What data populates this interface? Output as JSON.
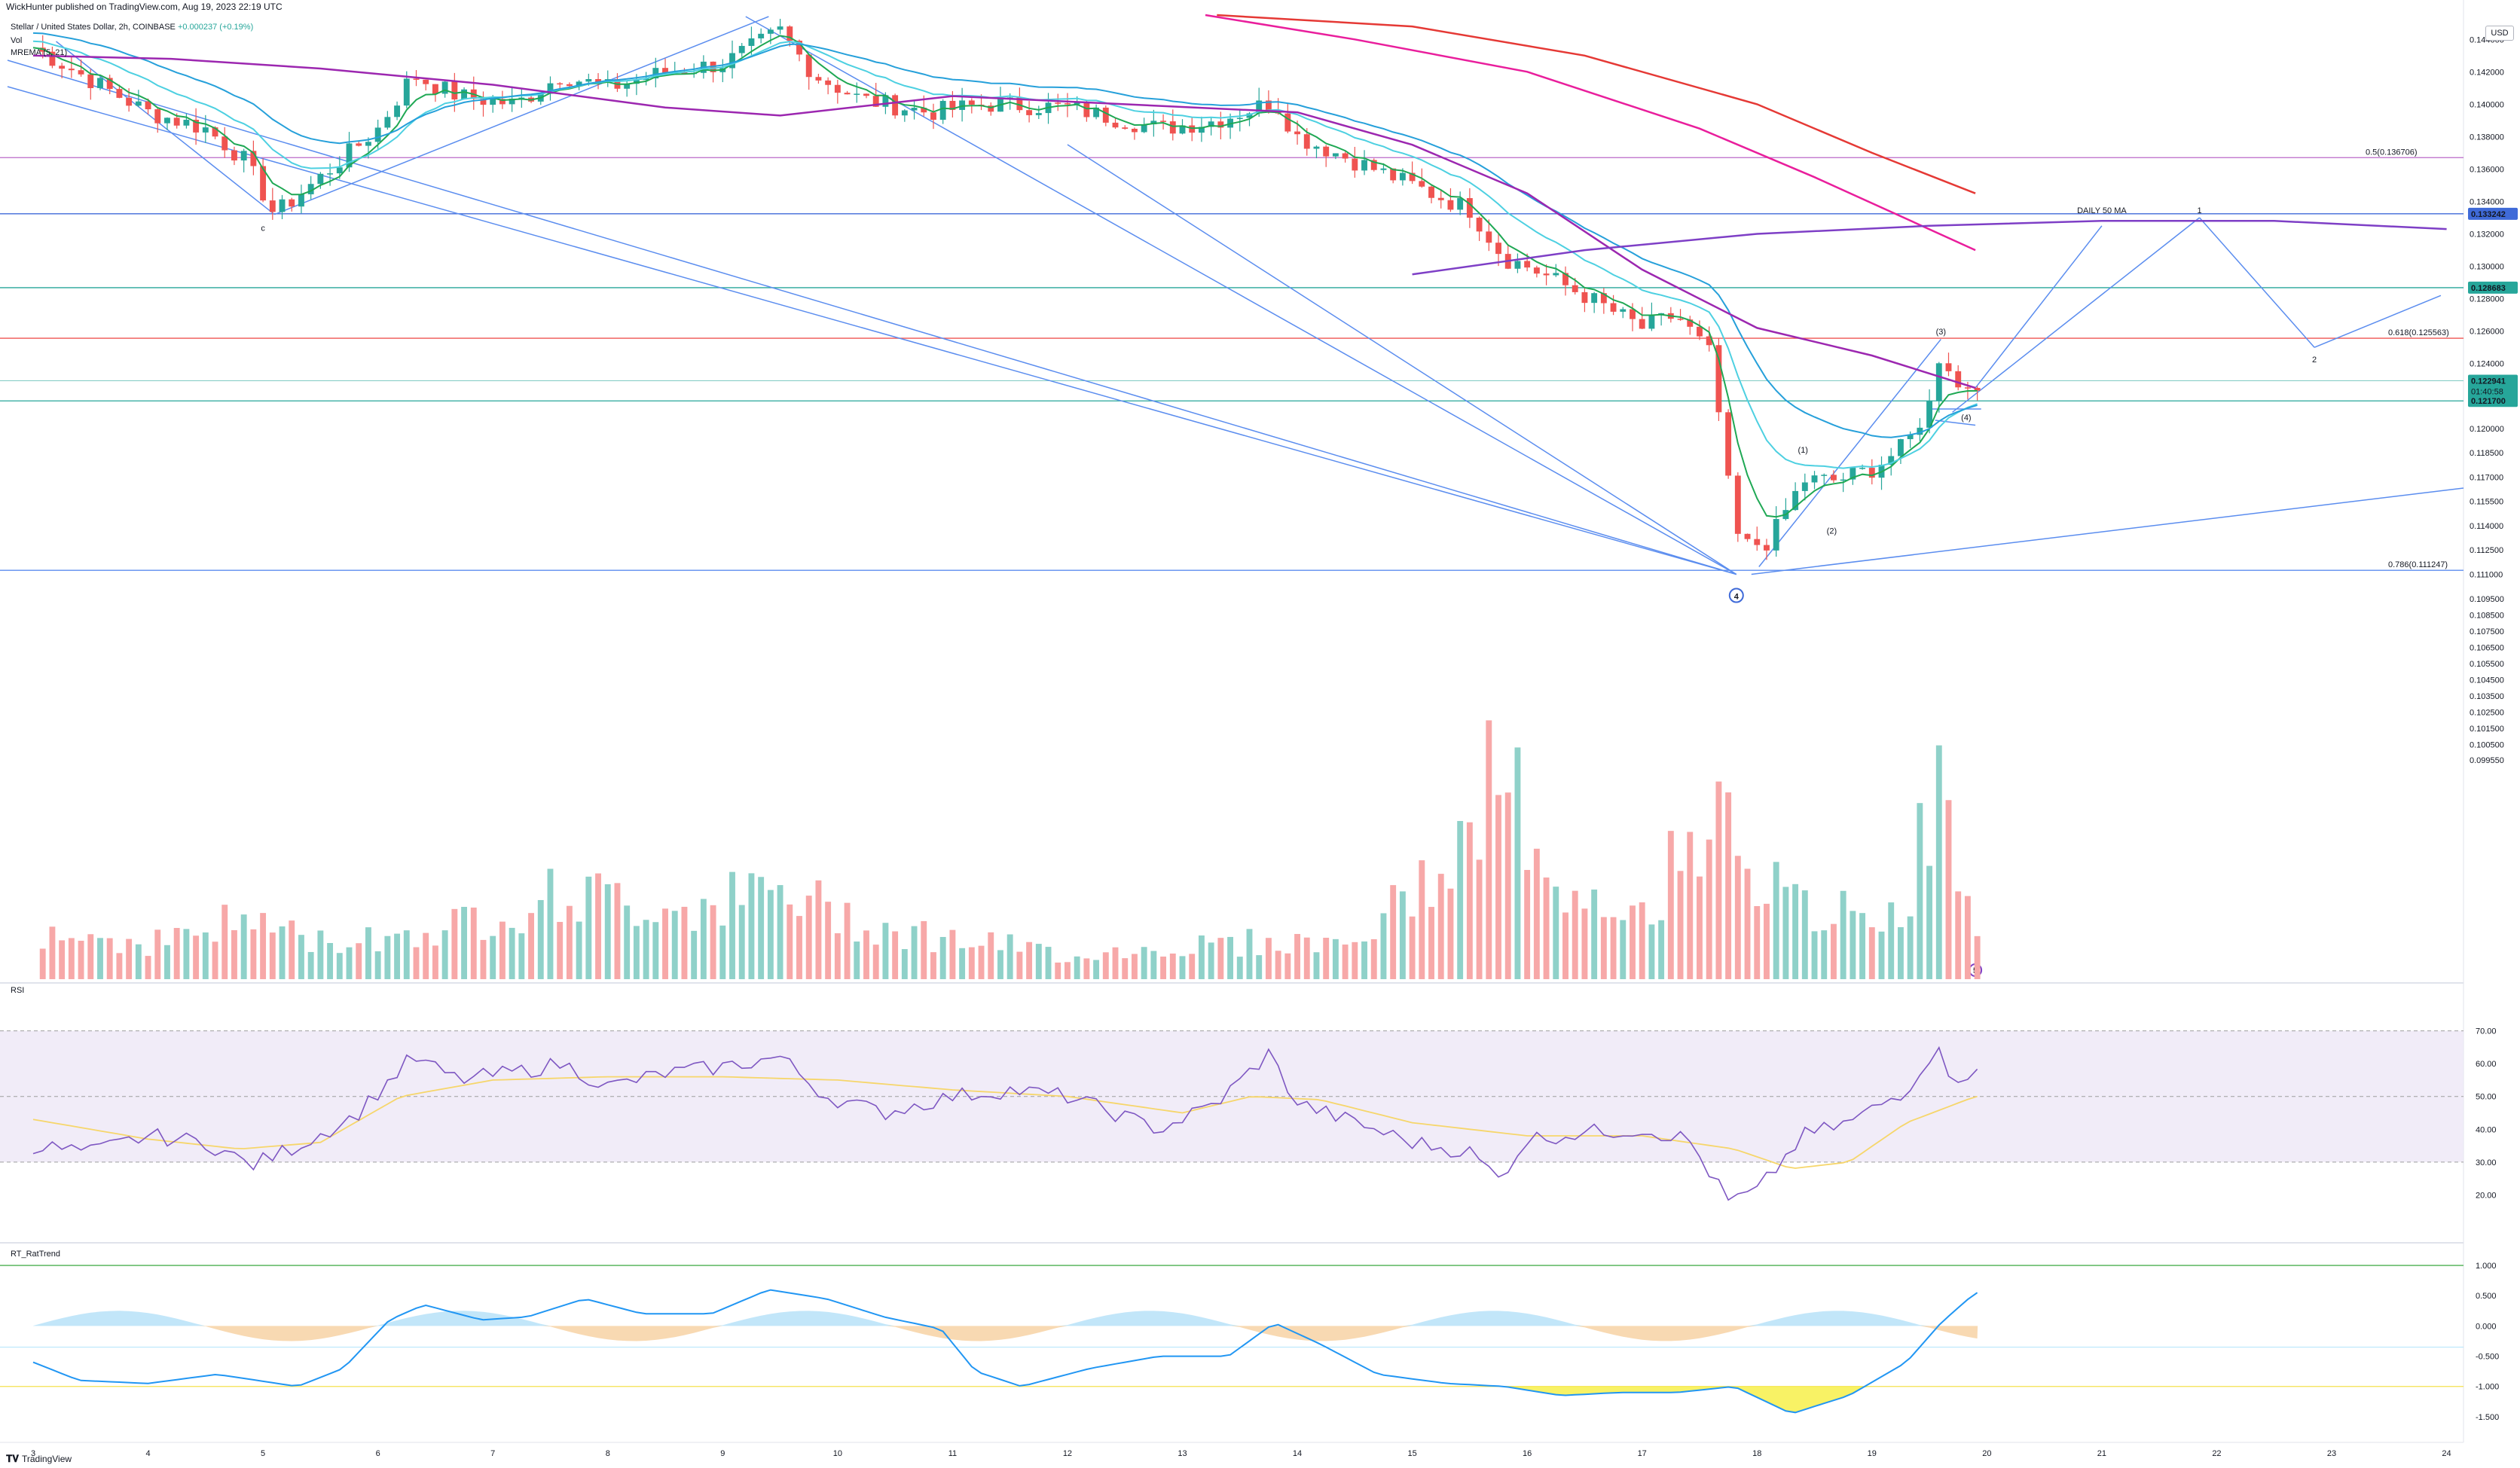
{
  "header": {
    "publisher": "WickHunter published on TradingView.com, Aug 19, 2023 22:19 UTC"
  },
  "legend": {
    "symbol": "Stellar / United States Dollar, 2h, COINBASE",
    "change": "+0.000237 (+0.19%)",
    "vol": "Vol",
    "mr_ema": "MREMA (5, 21)"
  },
  "usd_label": "USD",
  "footer": {
    "brand": "TradingView"
  },
  "colors": {
    "up": "#26a69a",
    "down": "#ef5350",
    "vol_up": "#8fd1c9",
    "vol_down": "#f7a8a8",
    "ema_fast": "#1fa854",
    "ema_mid": "#4dd0e1",
    "ema_slow": "#26a0da",
    "ma_purple": "#9c27b0",
    "ma_magenta": "#e91e9c",
    "ma_red": "#e53935",
    "daily50": "#7e3fc6",
    "fib": "#5b8def",
    "rsi": "#7e57c2",
    "rsi_ma": "#f6d66b"
  },
  "annotations": {
    "daily_50_ma": "DAILY 50 MA",
    "wave_1": "1",
    "wave_2": "2",
    "sub_1": "(1)",
    "sub_2": "(2)",
    "sub_3": "(3)",
    "sub_4": "(4)",
    "wave_c": "c",
    "wave_4": "4",
    "wave_5": "5",
    "fib_05": "0.5(0.136706)",
    "fib_0618": "0.618(0.125563)",
    "fib_0786": "0.786(0.111247)"
  },
  "price_badges": {
    "p1": "0.133242",
    "p2": "0.128683",
    "p3": "0.122941",
    "p3_timer": "01:40:58",
    "p4": "0.121700"
  },
  "rsi_pane": {
    "label": "RSI",
    "ticks": [
      "70.00",
      "60.00",
      "50.00",
      "40.00",
      "30.00",
      "20.00"
    ]
  },
  "trend_pane": {
    "label": "RT_RatTrend",
    "ticks": [
      "1.000",
      "0.500",
      "0.000",
      "-0.500",
      "-1.000",
      "-1.500"
    ]
  },
  "chart_data": {
    "type": "candlestick",
    "timeframe": "2h",
    "x_ticks": [
      "3",
      "4",
      "5",
      "6",
      "7",
      "8",
      "9",
      "10",
      "11",
      "12",
      "13",
      "14",
      "15",
      "16",
      "17",
      "18",
      "19",
      "20",
      "21",
      "22",
      "23",
      "24"
    ],
    "price_ticks": [
      "0.144000",
      "0.142000",
      "0.140000",
      "0.138000",
      "0.136000",
      "0.134000",
      "0.132000",
      "0.130000",
      "0.128000",
      "0.126000",
      "0.124000",
      "0.122000",
      "0.120000",
      "0.118500",
      "0.117000",
      "0.115500",
      "0.114000",
      "0.112500",
      "0.111000",
      "0.109500",
      "0.108500",
      "0.107500",
      "0.106500",
      "0.105500",
      "0.104500",
      "0.103500",
      "0.102500",
      "0.101500",
      "0.100500",
      "0.099550"
    ],
    "price_range": [
      0.0995,
      0.1455
    ],
    "price_anchors": [
      [
        3.0,
        0.1435
      ],
      [
        3.5,
        0.1415
      ],
      [
        4.0,
        0.1395
      ],
      [
        4.5,
        0.1385
      ],
      [
        4.85,
        0.1365
      ],
      [
        5.1,
        0.1332
      ],
      [
        5.5,
        0.1355
      ],
      [
        6.0,
        0.1385
      ],
      [
        6.3,
        0.1418
      ],
      [
        6.7,
        0.1405
      ],
      [
        7.2,
        0.14
      ],
      [
        7.6,
        0.1418
      ],
      [
        8.0,
        0.141
      ],
      [
        8.5,
        0.142
      ],
      [
        9.0,
        0.1425
      ],
      [
        9.5,
        0.1445
      ],
      [
        9.8,
        0.1418
      ],
      [
        10.2,
        0.1403
      ],
      [
        10.8,
        0.1395
      ],
      [
        11.3,
        0.14
      ],
      [
        12.0,
        0.1398
      ],
      [
        12.8,
        0.1385
      ],
      [
        13.3,
        0.139
      ],
      [
        13.8,
        0.1402
      ],
      [
        14.0,
        0.138
      ],
      [
        14.5,
        0.1365
      ],
      [
        15.0,
        0.135
      ],
      [
        15.5,
        0.1335
      ],
      [
        15.8,
        0.1305
      ],
      [
        16.0,
        0.13
      ],
      [
        16.5,
        0.1282
      ],
      [
        17.0,
        0.1262
      ],
      [
        17.3,
        0.127
      ],
      [
        17.6,
        0.1245
      ],
      [
        17.75,
        0.1165
      ],
      [
        17.85,
        0.1127
      ],
      [
        18.1,
        0.113
      ],
      [
        18.4,
        0.1168
      ],
      [
        18.7,
        0.1168
      ],
      [
        19.0,
        0.1175
      ],
      [
        19.3,
        0.119
      ],
      [
        19.5,
        0.1215
      ],
      [
        19.6,
        0.125
      ],
      [
        19.75,
        0.1225
      ],
      [
        19.9,
        0.1229
      ]
    ],
    "volume_anchors": [
      [
        3.0,
        0.2
      ],
      [
        4.0,
        0.15
      ],
      [
        4.9,
        0.25
      ],
      [
        5.5,
        0.15
      ],
      [
        6.5,
        0.2
      ],
      [
        7.6,
        0.35
      ],
      [
        8.5,
        0.3
      ],
      [
        9.5,
        0.35
      ],
      [
        10.5,
        0.2
      ],
      [
        12.0,
        0.1
      ],
      [
        13.5,
        0.15
      ],
      [
        14.5,
        0.15
      ],
      [
        15.6,
        0.6
      ],
      [
        15.75,
        1.0
      ],
      [
        16.2,
        0.3
      ],
      [
        17.0,
        0.25
      ],
      [
        17.75,
        0.85
      ],
      [
        18.0,
        0.4
      ],
      [
        18.5,
        0.25
      ],
      [
        19.3,
        0.3
      ],
      [
        19.55,
        0.8
      ],
      [
        19.9,
        0.2
      ]
    ],
    "rsi_anchors": [
      [
        3.0,
        35
      ],
      [
        3.5,
        33
      ],
      [
        4.0,
        38
      ],
      [
        4.5,
        36
      ],
      [
        4.9,
        29
      ],
      [
        5.3,
        35
      ],
      [
        5.8,
        44
      ],
      [
        6.3,
        62
      ],
      [
        6.7,
        55
      ],
      [
        7.3,
        58
      ],
      [
        7.6,
        60
      ],
      [
        8.0,
        53
      ],
      [
        8.5,
        57
      ],
      [
        9.0,
        59
      ],
      [
        9.5,
        62
      ],
      [
        9.9,
        50
      ],
      [
        10.4,
        45
      ],
      [
        11.0,
        50
      ],
      [
        11.5,
        52
      ],
      [
        12.0,
        50
      ],
      [
        12.8,
        40
      ],
      [
        13.3,
        48
      ],
      [
        13.75,
        63
      ],
      [
        14.0,
        48
      ],
      [
        14.5,
        42
      ],
      [
        15.0,
        36
      ],
      [
        15.5,
        33
      ],
      [
        15.75,
        25
      ],
      [
        16.0,
        37
      ],
      [
        16.5,
        39
      ],
      [
        17.0,
        40
      ],
      [
        17.4,
        37
      ],
      [
        17.75,
        18
      ],
      [
        18.0,
        21
      ],
      [
        18.4,
        38
      ],
      [
        18.8,
        42
      ],
      [
        19.3,
        52
      ],
      [
        19.55,
        65
      ],
      [
        19.7,
        56
      ],
      [
        19.9,
        57
      ]
    ],
    "rsi_ma_anchors": [
      [
        3.0,
        43
      ],
      [
        4.0,
        37
      ],
      [
        4.8,
        34
      ],
      [
        5.5,
        36
      ],
      [
        6.2,
        50
      ],
      [
        7.0,
        55
      ],
      [
        8.0,
        56
      ],
      [
        9.0,
        56
      ],
      [
        10.0,
        55
      ],
      [
        11.0,
        52
      ],
      [
        12.0,
        50
      ],
      [
        13.0,
        45
      ],
      [
        13.6,
        50
      ],
      [
        14.2,
        49
      ],
      [
        15.0,
        42
      ],
      [
        16.0,
        38
      ],
      [
        17.0,
        38
      ],
      [
        17.8,
        34
      ],
      [
        18.3,
        28
      ],
      [
        18.8,
        30
      ],
      [
        19.3,
        42
      ],
      [
        19.9,
        50
      ]
    ],
    "trend_anchors": [
      [
        3.0,
        -0.6
      ],
      [
        3.4,
        -0.9
      ],
      [
        4.0,
        -0.95
      ],
      [
        4.6,
        -0.8
      ],
      [
        5.3,
        -1.0
      ],
      [
        5.7,
        -0.7
      ],
      [
        6.1,
        0.1
      ],
      [
        6.4,
        0.35
      ],
      [
        6.9,
        0.1
      ],
      [
        7.3,
        0.15
      ],
      [
        7.8,
        0.45
      ],
      [
        8.3,
        0.2
      ],
      [
        8.9,
        0.2
      ],
      [
        9.4,
        0.6
      ],
      [
        9.9,
        0.45
      ],
      [
        10.4,
        0.15
      ],
      [
        10.9,
        -0.05
      ],
      [
        11.2,
        -0.75
      ],
      [
        11.6,
        -1.0
      ],
      [
        12.2,
        -0.7
      ],
      [
        12.8,
        -0.5
      ],
      [
        13.4,
        -0.5
      ],
      [
        13.8,
        0.05
      ],
      [
        14.2,
        -0.3
      ],
      [
        14.7,
        -0.8
      ],
      [
        15.3,
        -0.95
      ],
      [
        15.8,
        -1.0
      ],
      [
        16.3,
        -1.15
      ],
      [
        16.8,
        -1.1
      ],
      [
        17.3,
        -1.1
      ],
      [
        17.8,
        -1.0
      ],
      [
        18.3,
        -1.45
      ],
      [
        18.8,
        -1.15
      ],
      [
        19.3,
        -0.6
      ],
      [
        19.6,
        0.05
      ],
      [
        19.9,
        0.55
      ]
    ]
  }
}
